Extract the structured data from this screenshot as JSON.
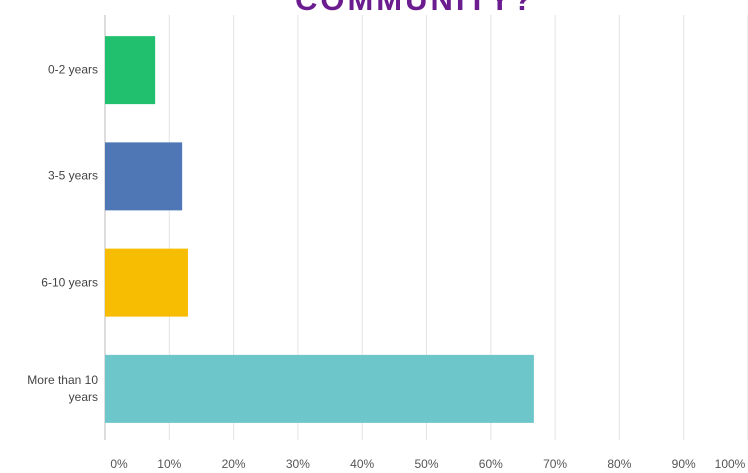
{
  "chart_data": {
    "type": "barh",
    "title": "COMMUNITY?",
    "categories": [
      "0-2 years",
      "3-5 years",
      "6-10 years",
      "More than 10 years"
    ],
    "values": [
      7.8,
      12,
      12.9,
      66.7
    ],
    "colors": [
      "#21c06f",
      "#4f77b6",
      "#f7bd02",
      "#6dc6ca"
    ],
    "xlim": [
      0,
      100
    ],
    "xticks": [
      {
        "value": 0,
        "label": "0%"
      },
      {
        "value": 10,
        "label": "10%"
      },
      {
        "value": 20,
        "label": "20%"
      },
      {
        "value": 30,
        "label": "30%"
      },
      {
        "value": 40,
        "label": "40%"
      },
      {
        "value": 50,
        "label": "50%"
      },
      {
        "value": 60,
        "label": "60%"
      },
      {
        "value": 70,
        "label": "70%"
      },
      {
        "value": 80,
        "label": "80%"
      },
      {
        "value": 90,
        "label": "90%"
      },
      {
        "value": 100,
        "label": "100%"
      }
    ],
    "grid": true
  }
}
